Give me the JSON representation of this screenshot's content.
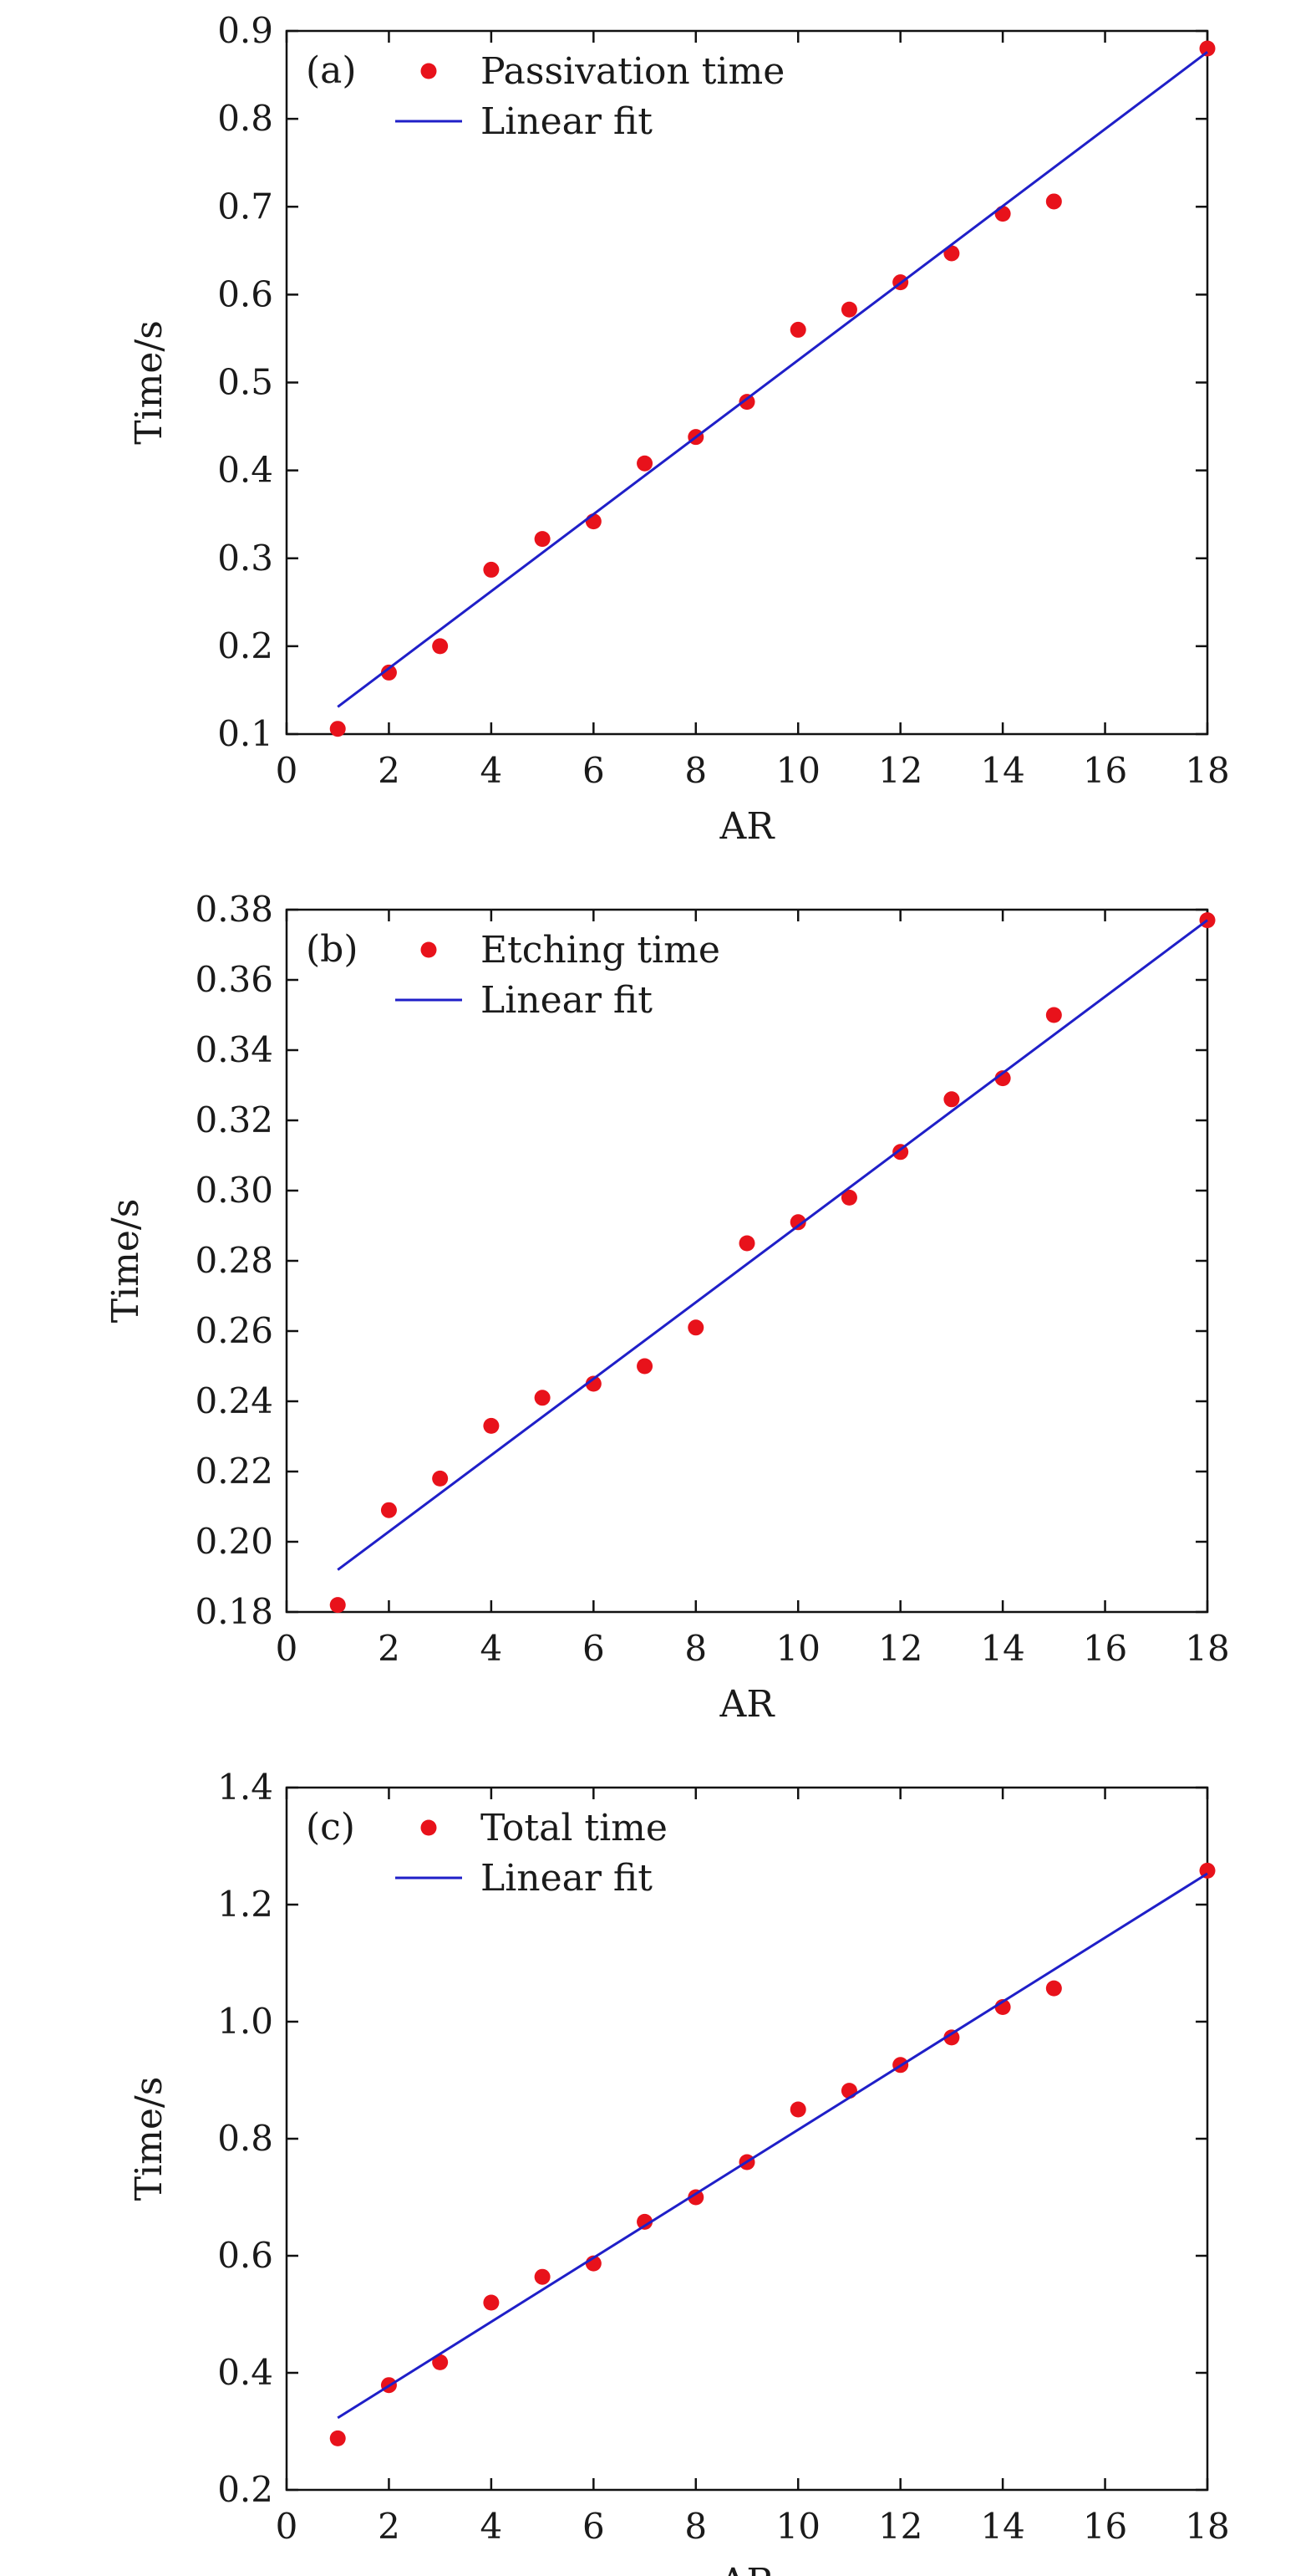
{
  "chart_data": [
    {
      "type": "scatter",
      "panel_label": "(a)",
      "xlabel": "AR",
      "ylabel": "Time/s",
      "xlim": [
        0,
        18
      ],
      "ylim": [
        0.1,
        0.9
      ],
      "xticks": [
        "0",
        "2",
        "4",
        "6",
        "8",
        "10",
        "12",
        "14",
        "16",
        "18"
      ],
      "yticks": [
        "0.1",
        "0.2",
        "0.3",
        "0.4",
        "0.5",
        "0.6",
        "0.7",
        "0.8",
        "0.9"
      ],
      "grid": false,
      "legend_position": "top-left",
      "series": [
        {
          "name": "Passivation time",
          "kind": "scatter",
          "color": "#e8121b",
          "x": [
            1,
            2,
            3,
            4,
            5,
            6,
            7,
            8,
            9,
            10,
            11,
            12,
            13,
            14,
            15,
            18
          ],
          "y": [
            0.106,
            0.17,
            0.2,
            0.287,
            0.322,
            0.342,
            0.408,
            0.438,
            0.478,
            0.56,
            0.583,
            0.614,
            0.647,
            0.692,
            0.706,
            0.88
          ]
        },
        {
          "name": "Linear fit",
          "kind": "line",
          "color": "#1f1fc8",
          "x": [
            1,
            18
          ],
          "y": [
            0.131,
            0.876
          ]
        }
      ]
    },
    {
      "type": "scatter",
      "panel_label": "(b)",
      "xlabel": "AR",
      "ylabel": "Time/s",
      "xlim": [
        0,
        18
      ],
      "ylim": [
        0.18,
        0.38
      ],
      "xticks": [
        "0",
        "2",
        "4",
        "6",
        "8",
        "10",
        "12",
        "14",
        "16",
        "18"
      ],
      "yticks": [
        "0.18",
        "0.20",
        "0.22",
        "0.24",
        "0.26",
        "0.28",
        "0.30",
        "0.32",
        "0.34",
        "0.36",
        "0.38"
      ],
      "grid": false,
      "legend_position": "top-left",
      "series": [
        {
          "name": "Etching time",
          "kind": "scatter",
          "color": "#e8121b",
          "x": [
            1,
            2,
            3,
            4,
            5,
            6,
            7,
            8,
            9,
            10,
            11,
            12,
            13,
            14,
            15,
            18
          ],
          "y": [
            0.182,
            0.209,
            0.218,
            0.233,
            0.241,
            0.245,
            0.25,
            0.261,
            0.285,
            0.291,
            0.298,
            0.311,
            0.326,
            0.332,
            0.35,
            0.377
          ]
        },
        {
          "name": "Linear fit",
          "kind": "line",
          "color": "#1f1fc8",
          "x": [
            1,
            18
          ],
          "y": [
            0.192,
            0.377
          ]
        }
      ]
    },
    {
      "type": "scatter",
      "panel_label": "(c)",
      "xlabel": "AR",
      "ylabel": "Time/s",
      "xlim": [
        0,
        18
      ],
      "ylim": [
        0.2,
        1.4
      ],
      "xticks": [
        "0",
        "2",
        "4",
        "6",
        "8",
        "10",
        "12",
        "14",
        "16",
        "18"
      ],
      "yticks": [
        "0.2",
        "0.4",
        "0.6",
        "0.8",
        "1.0",
        "1.2",
        "1.4"
      ],
      "grid": false,
      "legend_position": "top-left",
      "series": [
        {
          "name": "Total time",
          "kind": "scatter",
          "color": "#e8121b",
          "x": [
            1,
            2,
            3,
            4,
            5,
            6,
            7,
            8,
            9,
            10,
            11,
            12,
            13,
            14,
            15,
            18
          ],
          "y": [
            0.288,
            0.379,
            0.418,
            0.52,
            0.564,
            0.587,
            0.658,
            0.7,
            0.76,
            0.85,
            0.882,
            0.926,
            0.973,
            1.025,
            1.057,
            1.258
          ]
        },
        {
          "name": "Linear fit",
          "kind": "line",
          "color": "#1f1fc8",
          "x": [
            1,
            18
          ],
          "y": [
            0.323,
            1.253
          ]
        }
      ]
    }
  ]
}
